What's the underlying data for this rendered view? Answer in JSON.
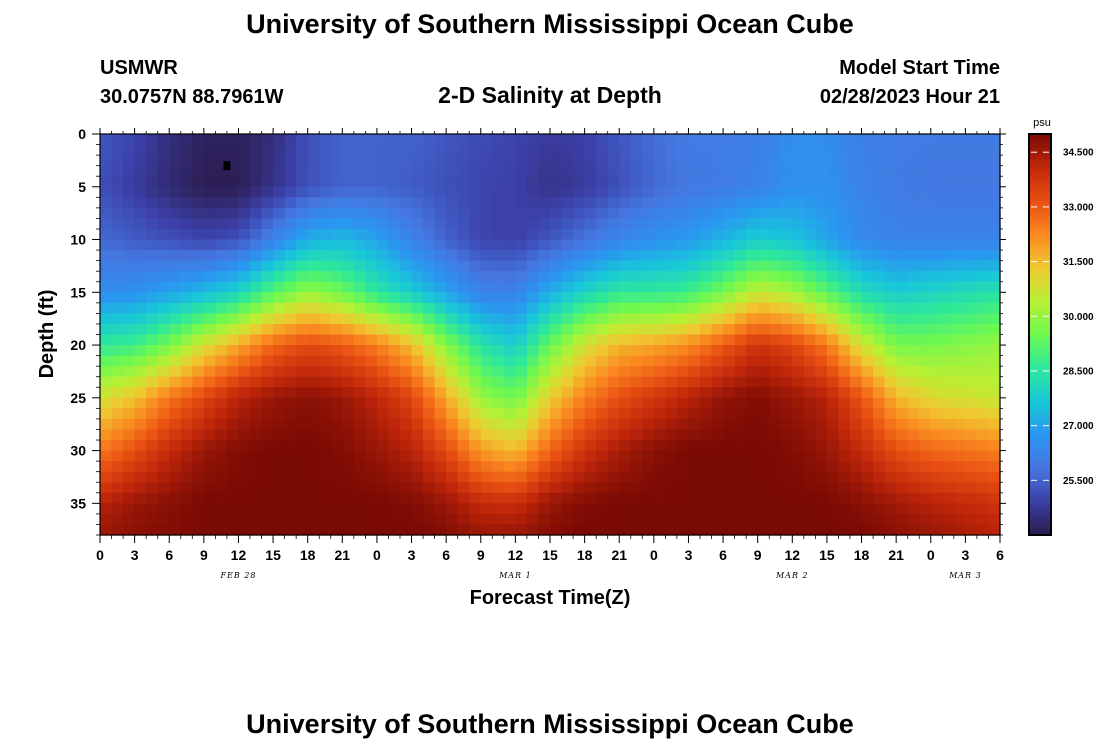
{
  "header": {
    "title": "University of Southern Mississippi Ocean Cube",
    "station": "USMWR",
    "coords": "30.0757N  88.7961W",
    "subtitle": "2-D Salinity at Depth",
    "model_label": "Model Start Time",
    "model_time": "02/28/2023 Hour 21"
  },
  "footer": {
    "title": "University of Southern Mississippi Ocean Cube"
  },
  "chart_data": {
    "type": "heatmap",
    "title": "2-D Salinity at Depth",
    "xlabel": "Forecast Time(Z)",
    "ylabel": "Depth (ft)",
    "x_range_hours": [
      0,
      78
    ],
    "ylim": [
      0,
      38
    ],
    "y_inverted": true,
    "x_tick_labels": [
      "0",
      "3",
      "6",
      "9",
      "12",
      "15",
      "18",
      "21",
      "0",
      "3",
      "6",
      "9",
      "12",
      "15",
      "18",
      "21",
      "0",
      "3",
      "6",
      "9",
      "12",
      "15",
      "18",
      "21",
      "0",
      "3",
      "6"
    ],
    "y_ticks": [
      0,
      5,
      10,
      15,
      20,
      25,
      30,
      35
    ],
    "day_labels": [
      {
        "text": "FEB 28",
        "hour": 12
      },
      {
        "text": "MAR 1",
        "hour": 36
      },
      {
        "text": "MAR 2",
        "hour": 60
      },
      {
        "text": "MAR 3",
        "hour": 75
      }
    ],
    "colorbar": {
      "unit": "psu",
      "labels": [
        "34.500",
        "33.000",
        "31.500",
        "30.000",
        "28.500",
        "27.000",
        "25.500"
      ],
      "range": [
        24.0,
        35.0
      ],
      "colors": [
        "#2a1a4a",
        "#3c40a8",
        "#4576e0",
        "#2a96f0",
        "#18c8d8",
        "#2ee89a",
        "#6ef850",
        "#b8f034",
        "#f0c830",
        "#fa8820",
        "#e84f12",
        "#c0270a",
        "#7a0a04"
      ]
    },
    "x": [
      0,
      3,
      6,
      9,
      12,
      15,
      18,
      21,
      24,
      27,
      30,
      33,
      36,
      39,
      42,
      45,
      48,
      51,
      54,
      57,
      60,
      63,
      66,
      69,
      72,
      75,
      78
    ],
    "y": [
      0,
      5,
      10,
      15,
      20,
      25,
      30,
      35,
      38
    ],
    "values": [
      [
        25.3,
        25.0,
        24.5,
        24.2,
        24.2,
        24.5,
        25.2,
        25.5,
        25.5,
        25.5,
        25.3,
        25.1,
        25.0,
        24.8,
        24.9,
        25.3,
        25.7,
        26.0,
        26.0,
        26.1,
        26.5,
        26.5,
        26.1,
        26.0,
        26.0,
        26.0,
        26.0
      ],
      [
        25.2,
        24.8,
        24.4,
        24.1,
        24.1,
        24.6,
        25.2,
        25.5,
        25.5,
        25.4,
        25.2,
        25.0,
        24.9,
        24.6,
        24.8,
        25.2,
        25.6,
        25.9,
        26.0,
        26.2,
        26.6,
        26.6,
        26.2,
        26.0,
        25.9,
        25.9,
        25.9
      ],
      [
        25.6,
        25.4,
        25.2,
        25.0,
        25.2,
        26.2,
        27.2,
        27.4,
        27.0,
        26.2,
        25.5,
        25.0,
        24.9,
        25.3,
        25.8,
        26.3,
        26.6,
        26.8,
        27.3,
        27.8,
        27.6,
        27.0,
        26.4,
        26.2,
        26.2,
        26.2,
        26.2
      ],
      [
        26.5,
        26.6,
        27.0,
        27.4,
        28.0,
        29.2,
        30.0,
        29.5,
        28.5,
        27.8,
        27.0,
        26.2,
        26.2,
        27.2,
        28.0,
        28.6,
        28.6,
        28.8,
        29.6,
        30.6,
        30.2,
        29.2,
        28.2,
        27.8,
        28.0,
        28.2,
        28.4
      ],
      [
        28.6,
        28.8,
        29.6,
        30.8,
        31.8,
        32.8,
        33.3,
        33.0,
        32.4,
        31.5,
        29.8,
        28.4,
        27.8,
        29.4,
        30.8,
        31.6,
        31.8,
        32.2,
        33.0,
        33.8,
        33.4,
        32.5,
        30.8,
        29.6,
        29.6,
        29.8,
        30.0
      ],
      [
        30.8,
        31.4,
        32.5,
        33.4,
        34.2,
        34.6,
        34.8,
        34.6,
        34.1,
        33.4,
        31.8,
        30.0,
        29.5,
        31.2,
        32.4,
        33.2,
        33.7,
        34.2,
        34.7,
        34.9,
        34.6,
        34.2,
        33.1,
        31.6,
        31.0,
        30.8,
        30.6
      ],
      [
        32.5,
        33.2,
        34.0,
        34.6,
        34.9,
        35.0,
        35.0,
        34.9,
        34.6,
        34.2,
        33.3,
        32.0,
        31.5,
        32.8,
        33.8,
        34.4,
        34.8,
        35.0,
        35.0,
        35.0,
        34.9,
        34.6,
        34.0,
        33.2,
        32.8,
        32.6,
        32.4
      ],
      [
        34.2,
        34.6,
        34.8,
        35.0,
        35.0,
        35.0,
        35.0,
        35.0,
        35.0,
        34.9,
        34.6,
        34.0,
        33.9,
        34.6,
        34.9,
        35.0,
        35.0,
        35.0,
        35.0,
        35.0,
        35.0,
        35.0,
        34.8,
        34.5,
        34.2,
        34.0,
        33.8
      ],
      [
        34.6,
        34.8,
        34.9,
        35.0,
        35.0,
        35.0,
        35.0,
        35.0,
        35.0,
        35.0,
        34.9,
        34.6,
        34.6,
        34.9,
        35.0,
        35.0,
        35.0,
        35.0,
        35.0,
        35.0,
        35.0,
        35.0,
        35.0,
        34.8,
        34.6,
        34.4,
        34.2
      ]
    ],
    "marker": {
      "x": 11,
      "y": 3
    }
  }
}
